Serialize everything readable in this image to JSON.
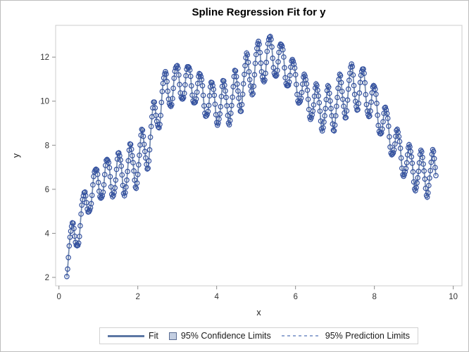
{
  "title": "Spline Regression Fit for y",
  "legend": {
    "fit_label": "Fit",
    "confidence_label": "95% Confidence Limits",
    "prediction_label": "95% Prediction Limits"
  },
  "colors": {
    "marker_stroke": "#34519f",
    "fit_line": "#6f86ab",
    "confidence_fill": "#cbd5e6",
    "prediction_dash": "#9fb2d8",
    "plot_border": "#cccccc",
    "tick_mark": "#8c8c8c",
    "tick_label": "#333333",
    "axis_label": "#1a1a1a"
  },
  "chart_data": {
    "type": "scatter",
    "title": "Spline Regression Fit for y",
    "xlabel": "x",
    "ylabel": "y",
    "x_ticks": [
      0,
      2,
      4,
      6,
      8,
      10
    ],
    "y_ticks": [
      2,
      4,
      6,
      8,
      10,
      12
    ],
    "xlim": [
      -0.084,
      10.221
    ],
    "ylim": [
      1.617,
      13.443
    ],
    "grid": false,
    "legend_position": "bottom-outside",
    "series_note": "Dense sample of observations with spline fit line passing through them; 95% confidence and prediction limits hug the fit so tightly they are hidden behind the markers.",
    "sampling": {
      "start": 0.2,
      "end": 9.56,
      "step": 0.02
    },
    "oscillation": {
      "amplitude": 0.95,
      "period": 0.295,
      "phase_x0": 0.26
    },
    "noise": [
      [
        0.13,
        23.7,
        2.1
      ],
      [
        0.08,
        61.3,
        4.5
      ]
    ],
    "confidence_halfwidth": 0.07,
    "prediction_halfwidth": 0.12,
    "trend_points": [
      [
        0.2,
        2.95
      ],
      [
        0.5,
        4.35
      ],
      [
        0.8,
        5.9
      ],
      [
        1.1,
        6.45
      ],
      [
        1.4,
        6.6
      ],
      [
        1.7,
        6.8
      ],
      [
        2.0,
        7.25
      ],
      [
        2.3,
        8.2
      ],
      [
        2.6,
        10.2
      ],
      [
        2.9,
        10.75
      ],
      [
        3.2,
        10.9
      ],
      [
        3.5,
        10.6
      ],
      [
        3.8,
        10.0
      ],
      [
        4.1,
        9.85
      ],
      [
        4.4,
        10.1
      ],
      [
        4.7,
        10.9
      ],
      [
        5.0,
        11.6
      ],
      [
        5.4,
        12.1
      ],
      [
        5.7,
        11.7
      ],
      [
        6.0,
        10.9
      ],
      [
        6.3,
        10.2
      ],
      [
        6.6,
        9.7
      ],
      [
        6.9,
        9.6
      ],
      [
        7.2,
        10.25
      ],
      [
        7.5,
        10.7
      ],
      [
        7.8,
        10.4
      ],
      [
        8.1,
        9.5
      ],
      [
        8.4,
        8.5
      ],
      [
        8.7,
        7.5
      ],
      [
        9.0,
        6.9
      ],
      [
        9.3,
        6.7
      ],
      [
        9.6,
        6.7
      ]
    ]
  }
}
